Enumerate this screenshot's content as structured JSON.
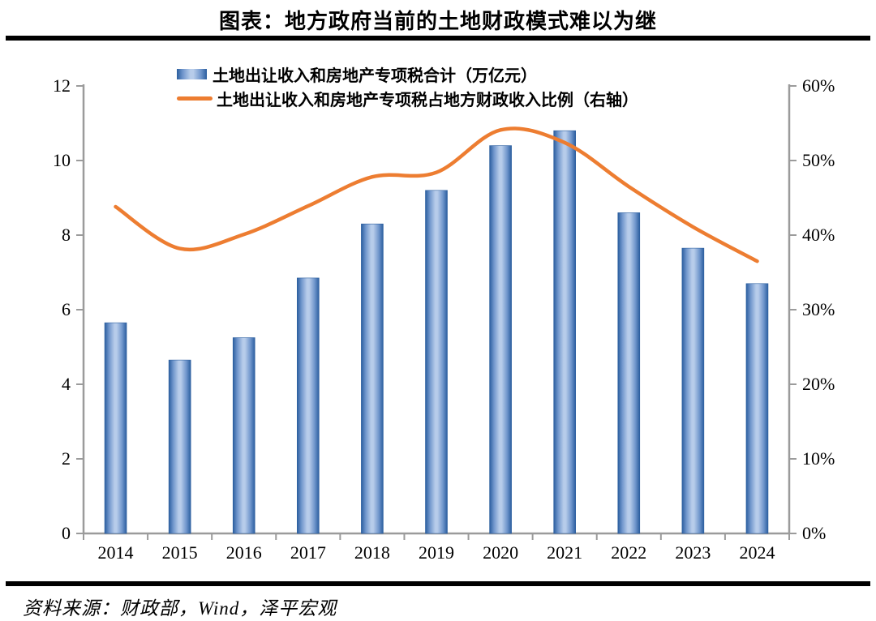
{
  "page": {
    "title": "图表：地方政府当前的土地财政模式难以为继",
    "source": "资料来源：财政部，Wind，泽平宏观"
  },
  "chart_data": {
    "type": "bar",
    "subtype": "bar-line-combo",
    "title": "图表：地方政府当前的土地财政模式难以为继",
    "categories": [
      "2014",
      "2015",
      "2016",
      "2017",
      "2018",
      "2019",
      "2020",
      "2021",
      "2022",
      "2023",
      "2024"
    ],
    "series": [
      {
        "name": "土地出让收入和房地产专项税合计（万亿元）",
        "type": "bar",
        "axis": "left",
        "values": [
          5.65,
          4.65,
          5.25,
          6.85,
          8.3,
          9.2,
          10.4,
          10.8,
          8.6,
          7.65,
          6.7
        ]
      },
      {
        "name": "土地出让收入和房地产专项税占地方财政收入比例（右轴）",
        "type": "line",
        "axis": "right",
        "values": [
          43.8,
          38.2,
          40.1,
          43.9,
          47.8,
          48.4,
          54.1,
          52.4,
          46.5,
          41.1,
          36.5
        ]
      }
    ],
    "left_axis": {
      "min": 0,
      "max": 12,
      "step": 2,
      "tick_labels": [
        "0",
        "2",
        "4",
        "6",
        "8",
        "10",
        "12"
      ]
    },
    "right_axis": {
      "min": 0,
      "max": 60,
      "step": 10,
      "tick_labels": [
        "0%",
        "10%",
        "20%",
        "30%",
        "40%",
        "50%",
        "60%"
      ]
    },
    "grid": "off",
    "legend_position": "top-inside-left",
    "colors": {
      "bar_edge": "#2B5E9F",
      "bar_mid": "#7096CC",
      "bar_light": "#B7CCEA",
      "line": "#ED7D31",
      "axis": "#9B9B9B",
      "text": "#000000"
    }
  }
}
